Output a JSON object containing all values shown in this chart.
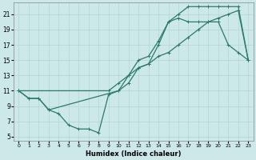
{
  "xlabel": "Humidex (Indice chaleur)",
  "bg_color": "#cce8e8",
  "grid_color": "#b0d4d4",
  "line_color": "#2a7a6a",
  "xlim": [
    -0.5,
    23.5
  ],
  "ylim": [
    4.5,
    22.5
  ],
  "xticks": [
    0,
    1,
    2,
    3,
    4,
    5,
    6,
    7,
    8,
    9,
    10,
    11,
    12,
    13,
    14,
    15,
    16,
    17,
    18,
    19,
    20,
    21,
    22,
    23
  ],
  "yticks": [
    5,
    7,
    9,
    11,
    13,
    15,
    17,
    19,
    21
  ],
  "line1_x": [
    0,
    1,
    2,
    3,
    4,
    5,
    6,
    7,
    8,
    9,
    10,
    11,
    12,
    13,
    14,
    15,
    16,
    17,
    18,
    19,
    20,
    21,
    22,
    23
  ],
  "line1_y": [
    11,
    10,
    10,
    8.5,
    8,
    6.5,
    6,
    6,
    5.5,
    10.5,
    11,
    12,
    14,
    14.5,
    17,
    20,
    20.5,
    20,
    20,
    20,
    20,
    17,
    16,
    15
  ],
  "line2_x": [
    0,
    1,
    2,
    3,
    10,
    11,
    12,
    13,
    14,
    15,
    16,
    17,
    18,
    19,
    20,
    21,
    22,
    23
  ],
  "line2_y": [
    11,
    10,
    10,
    8.5,
    11,
    13,
    15,
    15.5,
    17.5,
    20,
    21,
    22,
    22,
    22,
    22,
    22,
    22,
    15
  ],
  "line3_x": [
    0,
    9,
    10,
    11,
    12,
    13,
    14,
    15,
    16,
    17,
    18,
    19,
    20,
    21,
    22,
    23
  ],
  "line3_y": [
    11,
    11,
    12,
    13,
    14,
    14.5,
    15.5,
    16,
    17,
    18,
    19,
    20,
    20.5,
    21,
    21.5,
    15
  ]
}
